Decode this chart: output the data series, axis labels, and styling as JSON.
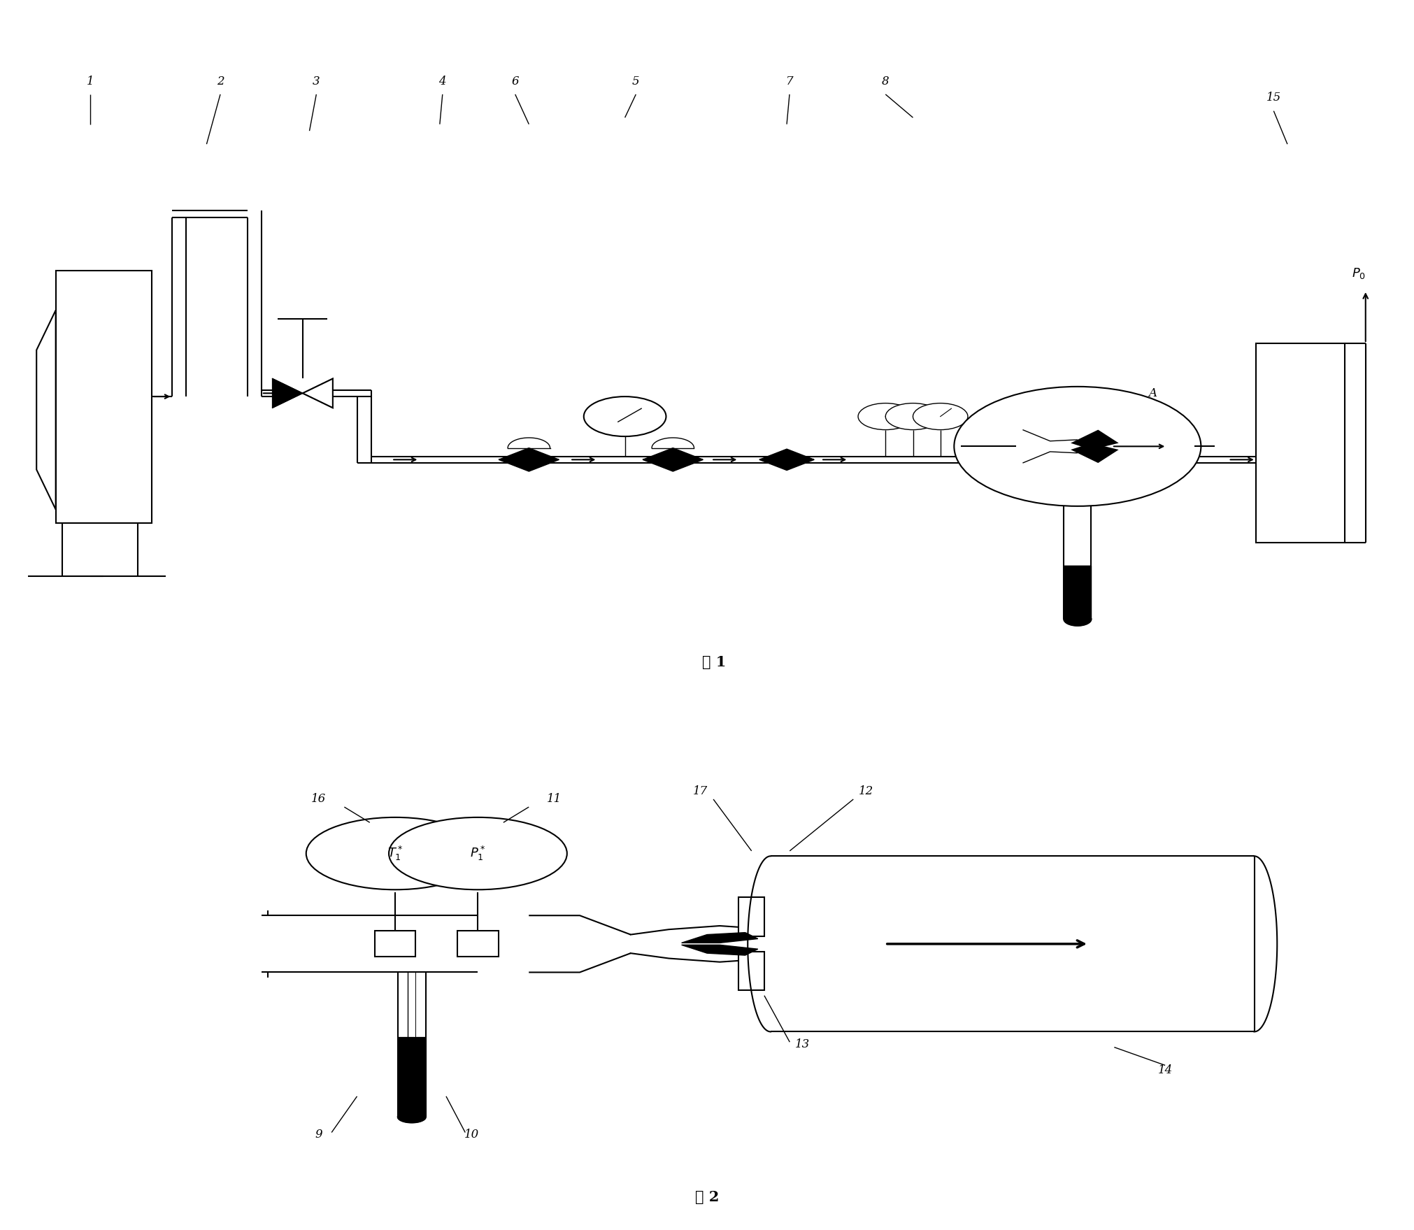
{
  "bg_color": "#ffffff",
  "lw_thin": 1.0,
  "lw_med": 1.5,
  "lw_thick": 2.0,
  "fig1_caption": "图 1",
  "fig2_caption": "图 2",
  "P0_label": "$P_0$"
}
